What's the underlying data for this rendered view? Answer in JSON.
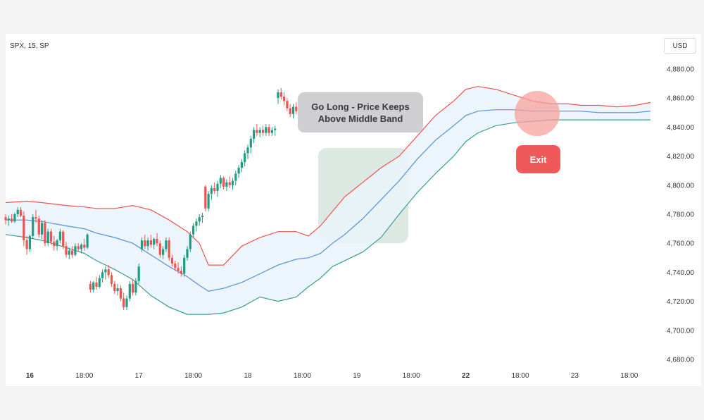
{
  "header": {
    "symbol": "SPX, 15, SP",
    "currency": "USD"
  },
  "annotations": {
    "entry": "Go Long - Price Keeps Above Middle Band",
    "exit": "Exit"
  },
  "colors": {
    "bull": "#1f9c84",
    "bear": "#ef5350",
    "upper_band": "#ef5350",
    "middle_band": "#5b8dd9",
    "lower_band": "#3c9e93",
    "band_fill": "#e9f4fb",
    "entry_zone": "#cfe2d8",
    "exit_zone": "#f7a29c",
    "exit_badge": "#f0595a"
  },
  "chart_data": {
    "type": "candlestick",
    "title": "",
    "indicator": "Bollinger Bands",
    "ylim": [
      4672,
      4892
    ],
    "y_ticks": [
      "4,680.00",
      "4,700.00",
      "4,720.00",
      "4,740.00",
      "4,760.00",
      "4,780.00",
      "4,800.00",
      "4,820.00",
      "4,840.00",
      "4,860.00",
      "4,880.00"
    ],
    "y_tick_values": [
      4680,
      4700,
      4720,
      4740,
      4760,
      4780,
      4800,
      4820,
      4840,
      4860,
      4880
    ],
    "x_ticks": [
      {
        "label": "16",
        "bold": true,
        "at": 8
      },
      {
        "label": "18:00",
        "bold": false,
        "at": 26
      },
      {
        "label": "17",
        "bold": false,
        "at": 44
      },
      {
        "label": "18:00",
        "bold": false,
        "at": 62
      },
      {
        "label": "18",
        "bold": false,
        "at": 80
      },
      {
        "label": "18:00",
        "bold": false,
        "at": 98
      },
      {
        "label": "19",
        "bold": false,
        "at": 116
      },
      {
        "label": "18:00",
        "bold": false,
        "at": 134
      },
      {
        "label": "22",
        "bold": true,
        "at": 152
      },
      {
        "label": "18:00",
        "bold": false,
        "at": 170
      },
      {
        "label": "23",
        "bold": false,
        "at": 188
      },
      {
        "label": "18:00",
        "bold": false,
        "at": 206
      }
    ],
    "candles": [
      [
        4778,
        4780,
        4773,
        4776
      ],
      [
        4776,
        4779,
        4772,
        4777
      ],
      [
        4777,
        4780,
        4774,
        4775
      ],
      [
        4775,
        4781,
        4774,
        4780
      ],
      [
        4780,
        4785,
        4778,
        4783
      ],
      [
        4783,
        4785,
        4778,
        4779
      ],
      [
        4779,
        4782,
        4758,
        4762
      ],
      [
        4762,
        4765,
        4752,
        4756
      ],
      [
        4756,
        4766,
        4754,
        4765
      ],
      [
        4765,
        4780,
        4763,
        4778
      ],
      [
        4778,
        4783,
        4774,
        4777
      ],
      [
        4777,
        4779,
        4764,
        4766
      ],
      [
        4766,
        4776,
        4763,
        4774
      ],
      [
        4774,
        4776,
        4758,
        4760
      ],
      [
        4760,
        4770,
        4758,
        4768
      ],
      [
        4768,
        4770,
        4759,
        4761
      ],
      [
        4761,
        4765,
        4755,
        4758
      ],
      [
        4758,
        4763,
        4755,
        4762
      ],
      [
        4762,
        4770,
        4760,
        4768
      ],
      [
        4768,
        4769,
        4756,
        4758
      ],
      [
        4758,
        4761,
        4750,
        4752
      ],
      [
        4752,
        4757,
        4749,
        4755
      ],
      [
        4755,
        4758,
        4750,
        4752
      ],
      [
        4752,
        4760,
        4751,
        4758
      ],
      [
        4758,
        4760,
        4754,
        4756
      ],
      [
        4756,
        4760,
        4753,
        4759
      ],
      [
        4759,
        4763,
        4755,
        4757
      ],
      [
        4757,
        4767,
        4756,
        4766
      ],
      [
        4732,
        4734,
        4726,
        4728
      ],
      [
        4728,
        4734,
        4726,
        4733
      ],
      [
        4733,
        4737,
        4728,
        4730
      ],
      [
        4730,
        4738,
        4729,
        4736
      ],
      [
        4736,
        4742,
        4733,
        4740
      ],
      [
        4740,
        4744,
        4735,
        4742
      ],
      [
        4742,
        4745,
        4736,
        4738
      ],
      [
        4738,
        4740,
        4730,
        4732
      ],
      [
        4732,
        4734,
        4725,
        4727
      ],
      [
        4727,
        4732,
        4724,
        4729
      ],
      [
        4729,
        4731,
        4720,
        4722
      ],
      [
        4722,
        4726,
        4714,
        4716
      ],
      [
        4716,
        4724,
        4714,
        4722
      ],
      [
        4722,
        4734,
        4720,
        4732
      ],
      [
        4732,
        4735,
        4724,
        4726
      ],
      [
        4726,
        4736,
        4724,
        4734
      ],
      [
        4734,
        4746,
        4732,
        4744
      ],
      [
        4756,
        4764,
        4754,
        4762
      ],
      [
        4762,
        4766,
        4756,
        4758
      ],
      [
        4758,
        4764,
        4755,
        4762
      ],
      [
        4762,
        4766,
        4757,
        4759
      ],
      [
        4759,
        4764,
        4756,
        4763
      ],
      [
        4763,
        4767,
        4758,
        4760
      ],
      [
        4760,
        4762,
        4750,
        4752
      ],
      [
        4752,
        4758,
        4749,
        4756
      ],
      [
        4756,
        4764,
        4754,
        4762
      ],
      [
        4762,
        4764,
        4748,
        4750
      ],
      [
        4750,
        4752,
        4744,
        4746
      ],
      [
        4746,
        4748,
        4741,
        4743
      ],
      [
        4743,
        4747,
        4739,
        4741
      ],
      [
        4741,
        4744,
        4737,
        4739
      ],
      [
        4739,
        4752,
        4737,
        4750
      ],
      [
        4750,
        4758,
        4748,
        4756
      ],
      [
        4756,
        4768,
        4754,
        4766
      ],
      [
        4766,
        4774,
        4764,
        4772
      ],
      [
        4772,
        4777,
        4768,
        4775
      ],
      [
        4775,
        4780,
        4772,
        4778
      ],
      [
        4778,
        4781,
        4774,
        4779
      ],
      [
        4799,
        4800,
        4782,
        4784
      ],
      [
        4784,
        4796,
        4782,
        4794
      ],
      [
        4794,
        4800,
        4790,
        4798
      ],
      [
        4798,
        4802,
        4794,
        4796
      ],
      [
        4796,
        4803,
        4792,
        4801
      ],
      [
        4801,
        4807,
        4798,
        4805
      ],
      [
        4805,
        4806,
        4797,
        4799
      ],
      [
        4799,
        4804,
        4796,
        4802
      ],
      [
        4802,
        4806,
        4798,
        4800
      ],
      [
        4800,
        4805,
        4797,
        4803
      ],
      [
        4803,
        4810,
        4800,
        4808
      ],
      [
        4808,
        4814,
        4805,
        4812
      ],
      [
        4812,
        4818,
        4809,
        4816
      ],
      [
        4816,
        4824,
        4813,
        4822
      ],
      [
        4822,
        4828,
        4818,
        4826
      ],
      [
        4826,
        4834,
        4822,
        4832
      ],
      [
        4832,
        4840,
        4829,
        4838
      ],
      [
        4838,
        4842,
        4834,
        4836
      ],
      [
        4836,
        4840,
        4833,
        4838
      ],
      [
        4838,
        4841,
        4834,
        4836
      ],
      [
        4836,
        4842,
        4834,
        4840
      ],
      [
        4840,
        4842,
        4834,
        4836
      ],
      [
        4836,
        4840,
        4834,
        4838
      ],
      [
        4838,
        4841,
        4834,
        4839
      ],
      [
        4860,
        4866,
        4856,
        4864
      ],
      [
        4864,
        4867,
        4859,
        4861
      ],
      [
        4861,
        4864,
        4855,
        4858
      ],
      [
        4858,
        4860,
        4851,
        4853
      ],
      [
        4853,
        4856,
        4847,
        4849
      ],
      [
        4849,
        4856,
        4846,
        4854
      ],
      [
        4854,
        4857,
        4849,
        4851
      ],
      [
        4851,
        4856,
        4849,
        4855
      ],
      [
        4855,
        4858,
        4850,
        4852
      ],
      [
        4852,
        4856,
        4849,
        4854
      ],
      [
        4854,
        4856,
        4850,
        4852
      ],
      [
        4852,
        4855,
        4848,
        4849
      ],
      [
        4849,
        4855,
        4847,
        4852
      ],
      [
        4852,
        4854,
        4846,
        4848
      ],
      [
        4848,
        4852,
        4846,
        4851
      ],
      [
        4851,
        4853,
        4844,
        4846
      ],
      [
        4846,
        4849,
        4840,
        4844
      ],
      [
        4844,
        4852,
        4842,
        4850
      ],
      [
        4850,
        4854,
        4848,
        4852
      ],
      [
        4852,
        4854,
        4846,
        4848
      ],
      [
        4848,
        4852,
        4846,
        4851
      ],
      [
        4851,
        4853,
        4847,
        4849
      ],
      [
        4849,
        4854,
        4847,
        4852
      ],
      [
        4852,
        4856,
        4849,
        4854
      ],
      [
        4854,
        4857,
        4850,
        4851
      ],
      [
        4851,
        4855,
        4848,
        4853
      ],
      [
        4853,
        4856,
        4849,
        4850
      ],
      [
        4850,
        4853,
        4847,
        4852
      ],
      [
        4852,
        4855,
        4849,
        4854
      ],
      [
        4854,
        4856,
        4848,
        4849
      ],
      [
        4849,
        4852,
        4845,
        4847
      ],
      [
        4847,
        4850,
        4844,
        4846
      ],
      [
        4846,
        4849,
        4843,
        4848
      ],
      [
        4848,
        4851,
        4845,
        4846
      ],
      [
        4846,
        4850,
        4844,
        4849
      ],
      [
        4849,
        4851,
        4846,
        4847
      ],
      [
        4847,
        4850,
        4845,
        4849
      ],
      [
        4849,
        4855,
        4847,
        4854
      ],
      [
        4854,
        4856,
        4850,
        4851
      ],
      [
        4851,
        4854,
        4848,
        4853
      ],
      [
        4853,
        4856,
        4850,
        4852
      ],
      [
        4852,
        4855,
        4850,
        4854
      ],
      [
        4854,
        4855,
        4851,
        4852
      ]
    ],
    "bands": {
      "x": [
        0,
        7,
        12,
        20,
        26,
        30,
        36,
        42,
        48,
        54,
        60,
        64,
        67,
        72,
        78,
        84,
        90,
        96,
        100,
        104,
        108,
        112,
        118,
        124,
        130,
        136,
        142,
        148,
        152,
        156,
        162,
        168,
        174,
        180,
        186,
        190,
        196,
        202,
        208,
        213
      ],
      "upper": [
        4788,
        4789,
        4788,
        4786,
        4785,
        4784,
        4784,
        4786,
        4783,
        4776,
        4768,
        4760,
        4745,
        4745,
        4758,
        4764,
        4768,
        4768,
        4765,
        4772,
        4782,
        4792,
        4802,
        4812,
        4820,
        4834,
        4848,
        4858,
        4866,
        4868,
        4866,
        4862,
        4858,
        4856,
        4856,
        4855,
        4855,
        4854,
        4855,
        4857
      ],
      "middle": [
        4776,
        4776,
        4775,
        4772,
        4770,
        4767,
        4764,
        4760,
        4752,
        4744,
        4737,
        4731,
        4727,
        4729,
        4733,
        4739,
        4745,
        4749,
        4750,
        4753,
        4760,
        4766,
        4777,
        4790,
        4803,
        4818,
        4831,
        4841,
        4848,
        4851,
        4852,
        4852,
        4851,
        4851,
        4851,
        4851,
        4850,
        4850,
        4850,
        4851
      ],
      "lower": [
        4766,
        4764,
        4762,
        4757,
        4753,
        4748,
        4742,
        4735,
        4724,
        4716,
        4711,
        4711,
        4711,
        4712,
        4716,
        4723,
        4720,
        4723,
        4730,
        4736,
        4744,
        4748,
        4754,
        4764,
        4780,
        4795,
        4808,
        4820,
        4830,
        4836,
        4841,
        4843,
        4844,
        4845,
        4845,
        4845,
        4845,
        4845,
        4845,
        4845
      ]
    }
  }
}
